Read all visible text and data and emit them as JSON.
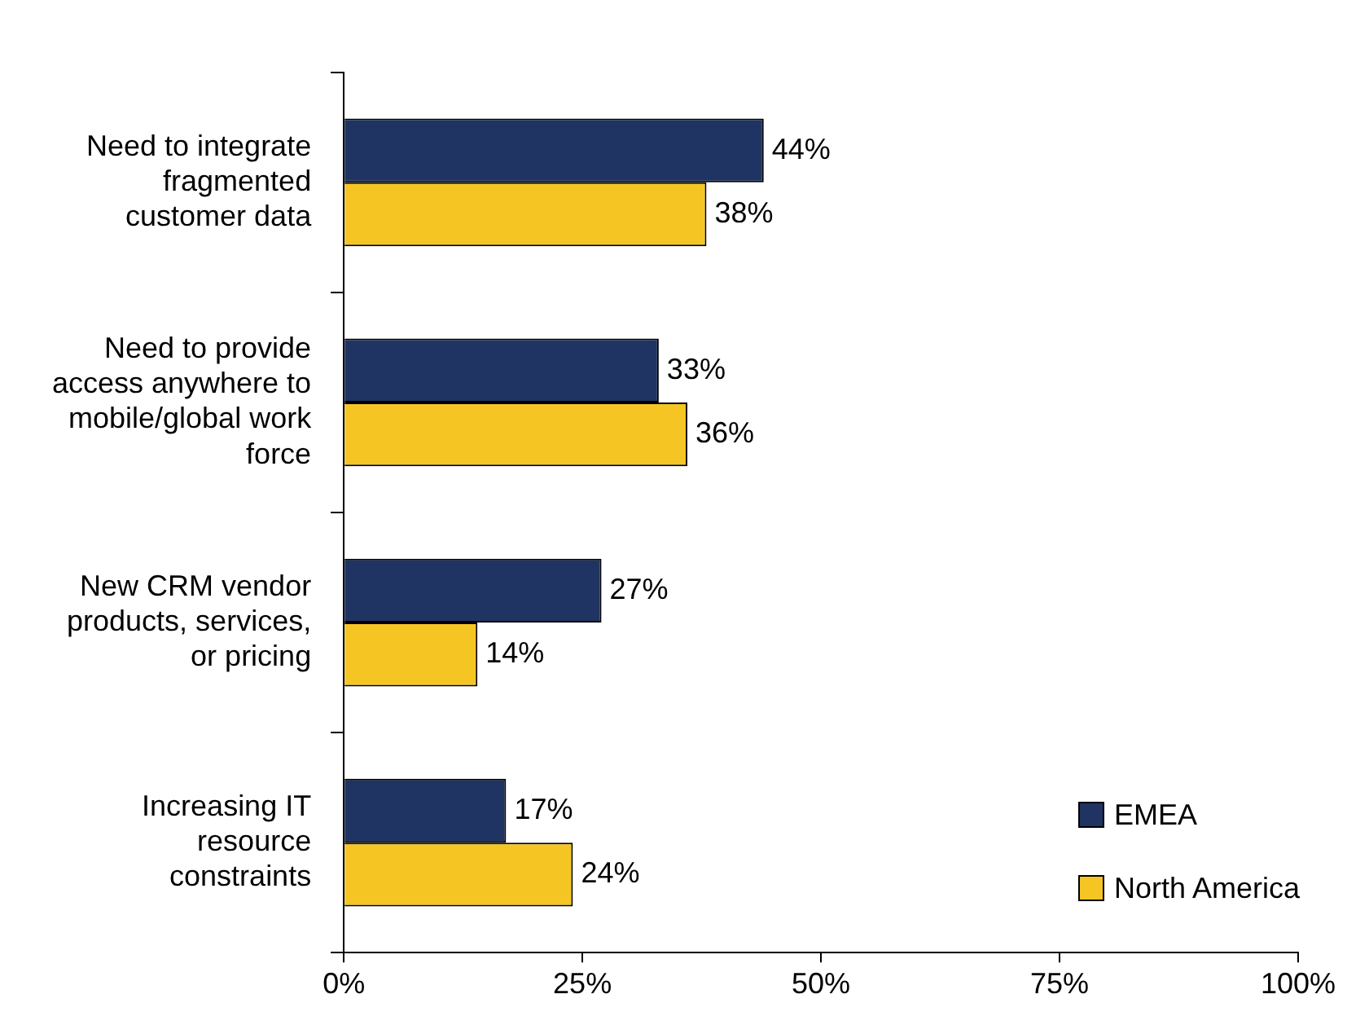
{
  "chart_data": {
    "type": "bar",
    "orientation": "horizontal",
    "categories": [
      "Need to integrate fragmented customer data",
      "Need to provide access anywhere to mobile/global work force",
      "New CRM vendor products, services, or pricing",
      "Increasing IT resource constraints"
    ],
    "series": [
      {
        "name": "EMEA",
        "color": "#1f3462",
        "values": [
          44,
          33,
          27,
          17
        ],
        "value_labels": [
          "44%",
          "33%",
          "27%",
          "17%"
        ]
      },
      {
        "name": "North America",
        "color": "#f5c623",
        "values": [
          38,
          36,
          14,
          24
        ],
        "value_labels": [
          "38%",
          "36%",
          "14%",
          "24%"
        ]
      }
    ],
    "xlim": [
      0,
      100
    ],
    "xticks": [
      {
        "value": 0,
        "label": "0%"
      },
      {
        "value": 25,
        "label": "25%"
      },
      {
        "value": 50,
        "label": "50%"
      },
      {
        "value": 75,
        "label": "75%"
      },
      {
        "value": 100,
        "label": "100%"
      }
    ],
    "grid": false,
    "legend": "bottom right"
  }
}
